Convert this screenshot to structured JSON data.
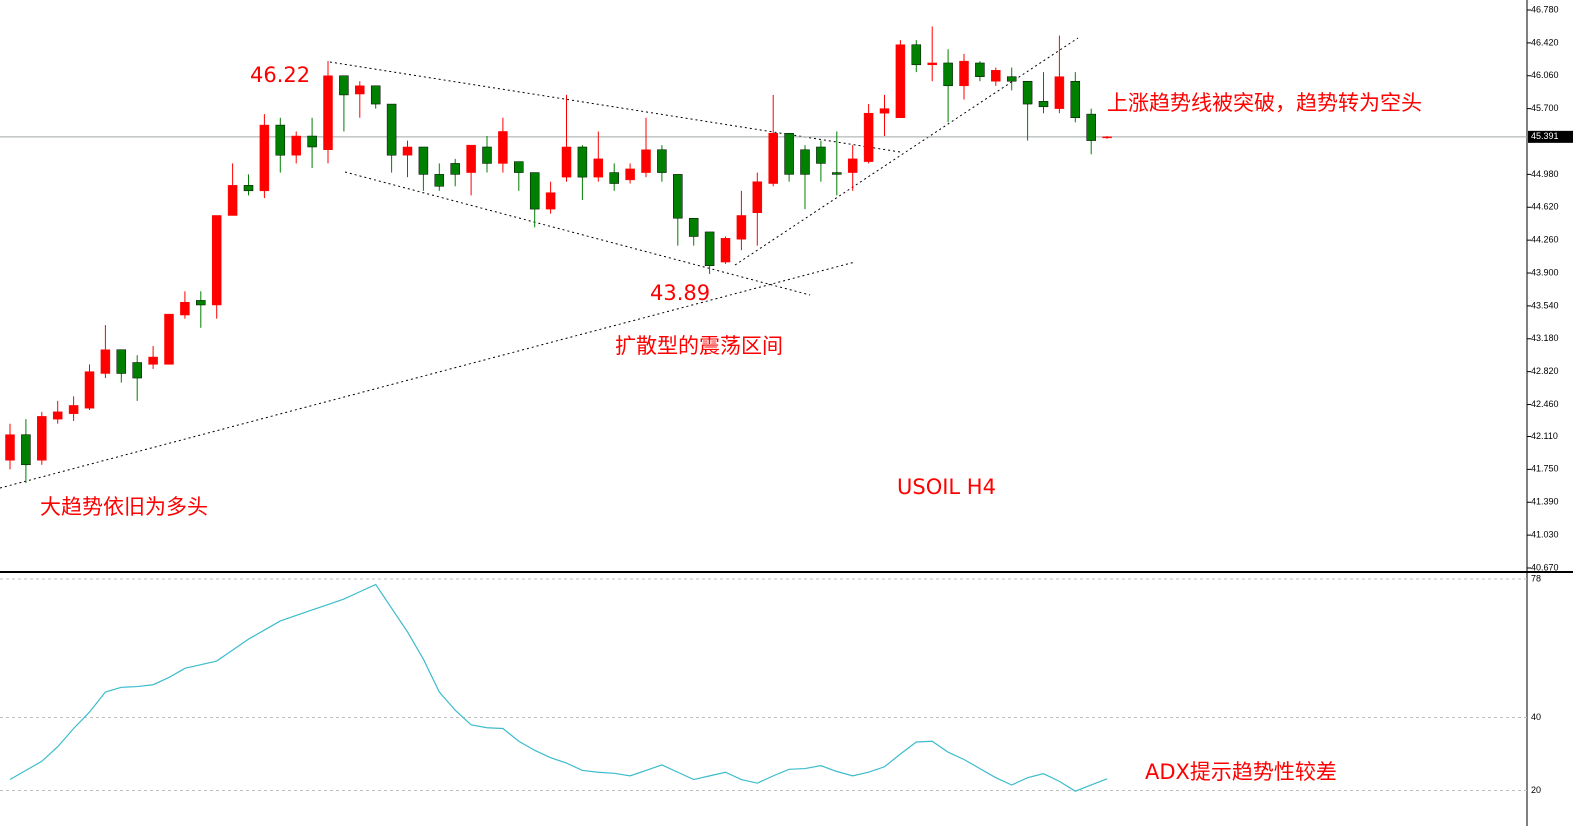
{
  "chart_data": [
    {
      "type": "candlestick",
      "title": "USOIL H4",
      "annotations": [
        "46.22",
        "43.89",
        "扩散型的震荡区间",
        "大趋势依旧为多头",
        "上涨趋势线被突破，趋势转为空头"
      ],
      "up_color": "#ff0000",
      "down_color": "#008000",
      "open": [
        41.85,
        42.13,
        41.85,
        42.3,
        42.36,
        42.42,
        42.8,
        43.06,
        42.92,
        42.9,
        42.9,
        43.44,
        43.6,
        43.55,
        44.53,
        44.86,
        44.8,
        45.52,
        45.19,
        45.4,
        45.25,
        46.06,
        45.86,
        45.95,
        45.75,
        45.19,
        45.28,
        44.98,
        45.1,
        45.0,
        45.28,
        45.1,
        45.12,
        45.0,
        44.6,
        44.95,
        45.28,
        44.95,
        45.0,
        44.92,
        45.0,
        45.25,
        44.98,
        44.5,
        44.35,
        44.02,
        44.27,
        44.56,
        44.88,
        45.43,
        45.25,
        45.28,
        45.0,
        45.0,
        45.12,
        45.65,
        45.6,
        46.4,
        46.18,
        46.2,
        45.95,
        46.2,
        46.0,
        46.05,
        46.0,
        45.78,
        45.7,
        46.0,
        45.64,
        45.38
      ],
      "high": [
        42.25,
        42.3,
        42.38,
        42.5,
        42.55,
        42.9,
        43.33,
        43.06,
        43.0,
        43.1,
        43.45,
        43.7,
        43.7,
        44.53,
        45.1,
        44.98,
        45.64,
        45.6,
        45.45,
        45.6,
        46.22,
        46.06,
        46.0,
        45.95,
        45.75,
        45.35,
        45.28,
        45.1,
        45.15,
        45.3,
        45.4,
        45.6,
        45.12,
        45.0,
        44.9,
        45.85,
        45.3,
        45.45,
        45.1,
        45.1,
        45.6,
        45.3,
        44.98,
        44.5,
        44.35,
        44.3,
        44.8,
        45.0,
        45.85,
        45.43,
        45.3,
        45.35,
        45.45,
        45.3,
        45.75,
        45.85,
        46.45,
        46.45,
        46.6,
        46.35,
        46.3,
        46.22,
        46.15,
        46.15,
        46.0,
        46.1,
        46.5,
        46.1,
        45.7,
        45.4
      ],
      "low": [
        41.75,
        41.6,
        41.8,
        42.25,
        42.28,
        42.4,
        42.75,
        42.7,
        42.5,
        42.85,
        42.9,
        43.4,
        43.3,
        43.4,
        44.53,
        44.75,
        44.72,
        45.0,
        45.1,
        45.05,
        45.1,
        45.45,
        45.6,
        45.7,
        45.0,
        44.95,
        44.8,
        44.8,
        44.85,
        44.75,
        45.0,
        45.0,
        44.8,
        44.4,
        44.55,
        44.9,
        44.7,
        44.9,
        44.8,
        44.88,
        44.95,
        44.9,
        44.2,
        44.2,
        43.89,
        44.0,
        44.15,
        44.2,
        44.85,
        44.9,
        44.6,
        44.9,
        44.75,
        44.8,
        45.1,
        45.4,
        45.6,
        46.1,
        46.0,
        45.55,
        45.8,
        46.0,
        45.95,
        45.9,
        45.35,
        45.65,
        45.65,
        45.55,
        45.2,
        45.37
      ],
      "close": [
        42.13,
        41.8,
        42.33,
        42.38,
        42.45,
        42.82,
        43.06,
        42.8,
        42.75,
        42.98,
        43.45,
        43.58,
        43.55,
        44.53,
        44.86,
        44.8,
        45.52,
        45.19,
        45.4,
        45.28,
        46.06,
        45.85,
        45.95,
        45.75,
        45.19,
        45.28,
        44.98,
        44.85,
        44.98,
        45.3,
        45.1,
        45.45,
        45.0,
        44.6,
        44.78,
        45.28,
        44.95,
        45.15,
        44.88,
        45.04,
        45.25,
        45.0,
        44.5,
        44.3,
        43.98,
        44.28,
        44.53,
        44.9,
        45.43,
        44.98,
        44.98,
        45.1,
        44.98,
        45.15,
        45.65,
        45.7,
        46.4,
        46.18,
        46.2,
        45.95,
        46.22,
        46.05,
        46.12,
        46.0,
        45.75,
        45.72,
        46.05,
        45.6,
        45.35,
        45.391
      ],
      "current_price": {
        "value": 45.391,
        "label": "45.391"
      },
      "ylim": [
        40.67,
        46.78
      ],
      "yticks": [
        {
          "value": 46.78,
          "label": "46.780"
        },
        {
          "value": 46.42,
          "label": "46.420"
        },
        {
          "value": 46.06,
          "label": "46.060"
        },
        {
          "value": 45.7,
          "label": "45.700"
        },
        {
          "value": 44.98,
          "label": "44.980"
        },
        {
          "value": 44.62,
          "label": "44.620"
        },
        {
          "value": 44.26,
          "label": "44.260"
        },
        {
          "value": 43.9,
          "label": "43.900"
        },
        {
          "value": 43.54,
          "label": "43.540"
        },
        {
          "value": 43.18,
          "label": "43.180"
        },
        {
          "value": 42.82,
          "label": "42.820"
        },
        {
          "value": 42.46,
          "label": "42.460"
        },
        {
          "value": 42.11,
          "label": "42.110"
        },
        {
          "value": 41.75,
          "label": "41.750"
        },
        {
          "value": 41.39,
          "label": "41.390"
        },
        {
          "value": 41.03,
          "label": "41.030"
        },
        {
          "value": 40.67,
          "label": "40.670"
        }
      ]
    },
    {
      "type": "line",
      "annotation": "ADX提示趋势性较差",
      "color": "#3cbccc",
      "values": [
        23,
        25.5,
        28,
        32,
        37,
        41.5,
        47,
        48.3,
        48.5,
        49,
        51,
        53.5,
        54.5,
        55.5,
        58.5,
        61.5,
        64,
        66.5,
        68,
        69.5,
        71,
        72.5,
        74.5,
        76.5,
        70,
        63.5,
        56,
        47,
        42,
        38,
        37.2,
        37,
        33.5,
        31,
        29,
        27.5,
        25.5,
        25,
        24.7,
        24,
        25.5,
        27,
        25,
        23,
        24,
        25,
        23,
        22,
        24,
        25.8,
        26,
        26.8,
        25.2,
        24,
        25,
        26.5,
        30,
        33.3,
        33.5,
        30.5,
        28.5,
        26,
        23.5,
        21.5,
        23.5,
        24.6,
        22.5,
        19.8,
        21.5,
        23.2
      ],
      "ylim": [
        11.35,
        78
      ],
      "yticks": [
        78,
        40,
        20
      ],
      "grid": true
    }
  ]
}
